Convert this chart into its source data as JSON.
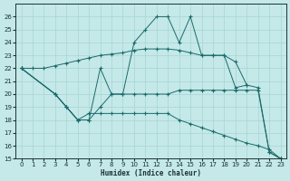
{
  "bg_color": "#c5e8e8",
  "line_color": "#1a6b6b",
  "grid_color": "#a8d4d4",
  "xlabel": "Humidex (Indice chaleur)",
  "xlim": [
    -0.5,
    23.5
  ],
  "ylim": [
    15,
    27
  ],
  "xticks": [
    0,
    1,
    2,
    3,
    4,
    5,
    6,
    7,
    8,
    9,
    10,
    11,
    12,
    13,
    14,
    15,
    16,
    17,
    18,
    19,
    20,
    21,
    22,
    23
  ],
  "yticks": [
    15,
    16,
    17,
    18,
    19,
    20,
    21,
    22,
    23,
    24,
    25,
    26
  ],
  "line1_x": [
    0,
    1,
    2,
    3,
    4,
    5,
    6,
    7,
    8,
    9,
    10,
    11,
    12,
    13,
    14,
    15,
    16,
    17,
    18,
    19,
    20
  ],
  "line1_y": [
    22,
    22,
    22,
    22.2,
    22.4,
    22.6,
    22.8,
    23.0,
    23.1,
    23.2,
    23.4,
    23.5,
    23.5,
    23.5,
    23.4,
    23.2,
    23.0,
    23.0,
    23.0,
    22.5,
    20.7
  ],
  "line2_x": [
    0,
    3,
    4,
    5,
    6,
    7,
    8,
    9,
    10,
    11,
    12,
    13,
    14,
    15,
    16,
    17,
    18,
    19,
    20,
    21,
    22,
    23
  ],
  "line2_y": [
    22,
    20,
    19,
    18,
    18,
    22,
    20,
    20,
    24,
    25,
    26,
    26,
    24,
    26,
    23,
    23,
    23,
    20.5,
    20.7,
    20.5,
    15.5,
    15
  ],
  "line3_x": [
    0,
    3,
    4,
    5,
    6,
    7,
    8,
    9,
    10,
    11,
    12,
    13,
    14,
    15,
    16,
    17,
    18,
    19,
    20,
    21,
    22,
    23
  ],
  "line3_y": [
    22,
    20,
    19,
    18,
    18,
    19,
    20,
    20,
    20,
    20,
    20,
    20,
    20.3,
    20.3,
    20.3,
    20.3,
    20.3,
    20.3,
    20.3,
    20.3,
    15.5,
    15
  ],
  "line4_x": [
    0,
    3,
    4,
    5,
    6,
    7,
    8,
    9,
    10,
    11,
    12,
    13,
    14,
    15,
    16,
    17,
    18,
    19,
    20,
    21,
    22,
    23
  ],
  "line4_y": [
    22,
    20,
    19,
    18,
    18.5,
    18.5,
    18.5,
    18.5,
    18.5,
    18.5,
    18.5,
    18.5,
    18,
    17.7,
    17.4,
    17.1,
    16.8,
    16.5,
    16.2,
    16.0,
    15.7,
    15
  ]
}
